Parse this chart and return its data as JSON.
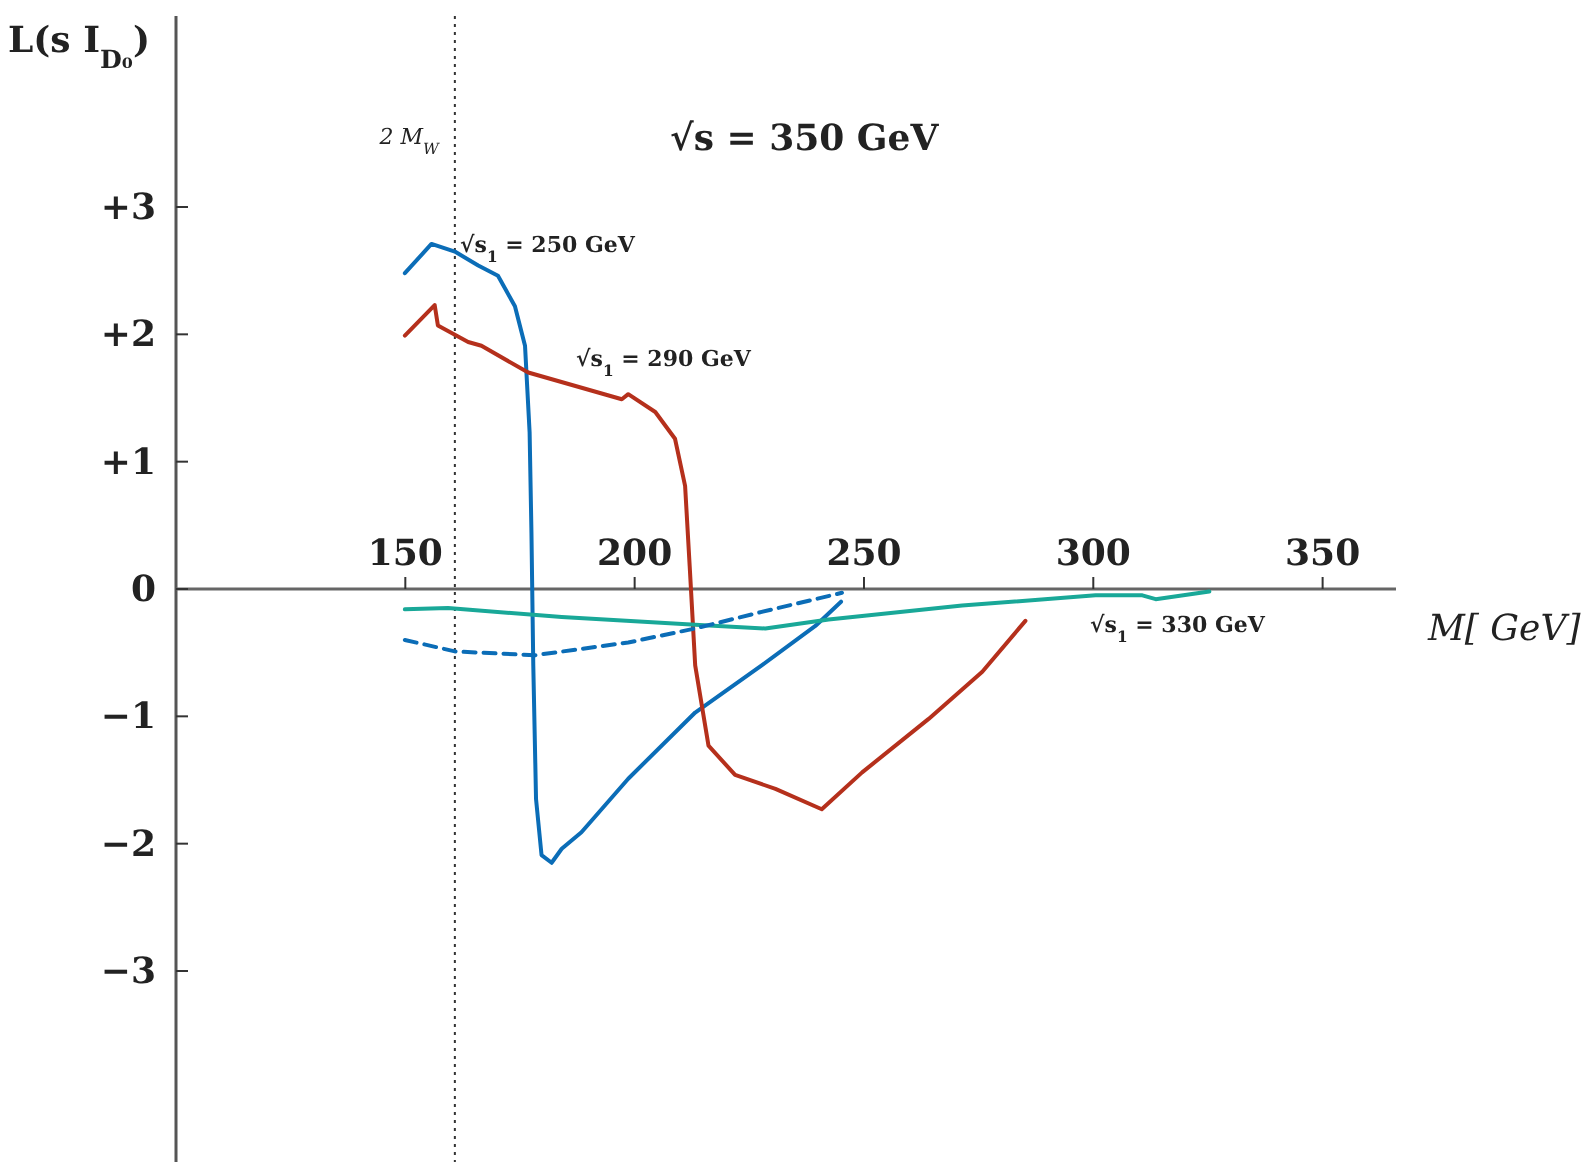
{
  "chart_data": {
    "type": "line",
    "title": "√s = 350 GeV",
    "xlabel": "M[ GeV]",
    "ylabel": "L(s I$_{D₀}$)",
    "xlim": [
      100,
      366
    ],
    "xticks": [
      150,
      200,
      250,
      300,
      350
    ],
    "ylim": [
      -4.5,
      4.5
    ],
    "yticks": [
      {
        "value": 3,
        "label": "+3"
      },
      {
        "value": 2,
        "label": "+2"
      },
      {
        "value": 1,
        "label": "+1"
      },
      {
        "value": 0,
        "label": "0"
      },
      {
        "value": -1,
        "label": "−1"
      },
      {
        "value": -2,
        "label": "−2"
      },
      {
        "value": -3,
        "label": "−3"
      }
    ],
    "grid": false,
    "ref_lines": [
      {
        "axis": "x",
        "value": 160.8,
        "label": "2 M$_{W}$",
        "line_style": "dotted",
        "color": "#333333"
      }
    ],
    "series": [
      {
        "name": "√s$_{1}$ = 250 GeV",
        "color": "#0b6db7",
        "line_style": "solid",
        "x": [
          149.9,
          155.7,
          160.8,
          165.9,
          170.2,
          173.9,
          176.1,
          177.1,
          177.5,
          177.9,
          178.5,
          179.7,
          181.9,
          184.1,
          188.4,
          198.6,
          213.2,
          227.7,
          239.4,
          245
        ],
        "values": [
          2.48,
          2.71,
          2.65,
          2.54,
          2.46,
          2.22,
          1.91,
          1.23,
          0.44,
          -0.6,
          -1.65,
          -2.09,
          -2.15,
          -2.04,
          -1.91,
          -1.49,
          -0.97,
          -0.6,
          -0.29,
          -0.1
        ]
      },
      {
        "name": "√s$_{1}$ = 290 GeV",
        "color": "#b5301c",
        "line_style": "solid",
        "x": [
          149.9,
          156.4,
          157.1,
          163.7,
          166.6,
          176.8,
          197.2,
          198.6,
          204.5,
          208.8,
          211,
          212,
          213.2,
          216.1,
          221.9,
          230.7,
          240.8,
          249.6,
          264.1,
          275.8,
          285.2
        ],
        "values": [
          1.99,
          2.23,
          2.07,
          1.94,
          1.91,
          1.7,
          1.49,
          1.53,
          1.39,
          1.18,
          0.81,
          0.18,
          -0.6,
          -1.23,
          -1.46,
          -1.57,
          -1.73,
          -1.44,
          -1.02,
          -0.65,
          -0.25
        ]
      },
      {
        "name": "√s$_{1}$ = 330 GeV",
        "color": "#19a898",
        "line_style": "solid",
        "x": [
          149.9,
          159.3,
          184.1,
          213.2,
          228.5,
          242.3,
          271.4,
          300.5,
          310.7,
          313.6,
          325.3
        ],
        "values": [
          -0.16,
          -0.15,
          -0.22,
          -0.28,
          -0.31,
          -0.24,
          -0.13,
          -0.05,
          -0.05,
          -0.08,
          -0.02
        ]
      },
      {
        "color": "#0b6db7",
        "line_style": "dashed",
        "x": [
          149.9,
          160.8,
          178.3,
          198.6,
          213.2,
          227.7,
          245.2
        ],
        "values": [
          -0.4,
          -0.49,
          -0.52,
          -0.42,
          -0.31,
          -0.18,
          -0.03
        ]
      }
    ]
  }
}
